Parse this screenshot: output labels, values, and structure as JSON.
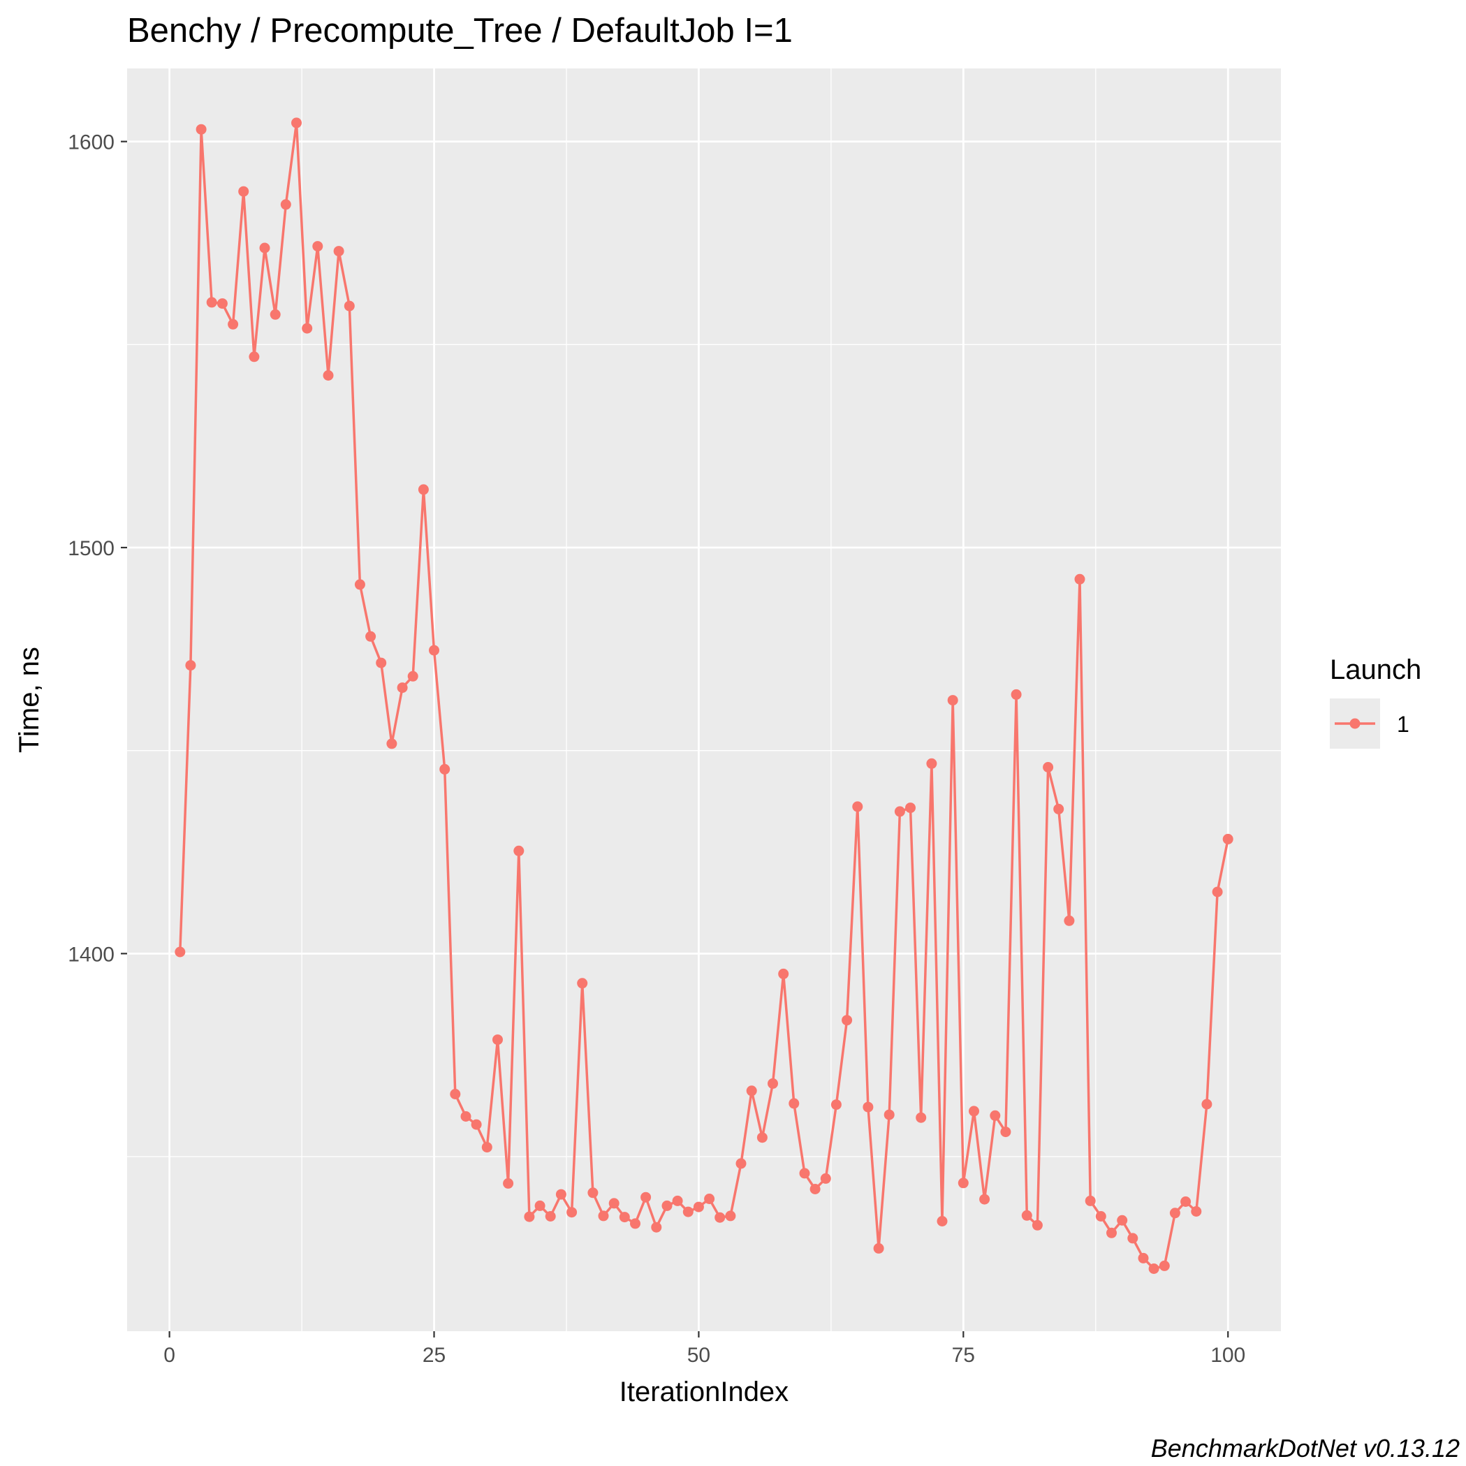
{
  "chart_data": {
    "type": "line",
    "title": "Benchy / Precompute_Tree / DefaultJob I=1",
    "xlabel": "IterationIndex",
    "ylabel": "Time, ns",
    "caption": "BenchmarkDotNet v0.13.12",
    "xlim": [
      -4,
      105
    ],
    "ylim": [
      1307,
      1618
    ],
    "x_ticks": [
      0,
      25,
      50,
      75,
      100
    ],
    "y_ticks": [
      1400,
      1500,
      1600
    ],
    "grid": true,
    "legend": {
      "title": "Launch",
      "position": "right"
    },
    "series": [
      {
        "name": "1",
        "color": "#F8766D",
        "x": [
          1,
          2,
          3,
          4,
          5,
          6,
          7,
          8,
          9,
          10,
          11,
          12,
          13,
          14,
          15,
          16,
          17,
          18,
          19,
          20,
          21,
          22,
          23,
          24,
          25,
          26,
          27,
          28,
          29,
          30,
          31,
          32,
          33,
          34,
          35,
          36,
          37,
          38,
          39,
          40,
          41,
          42,
          43,
          44,
          45,
          46,
          47,
          48,
          49,
          50,
          51,
          52,
          53,
          54,
          55,
          56,
          57,
          58,
          59,
          60,
          61,
          62,
          63,
          64,
          65,
          66,
          67,
          68,
          69,
          70,
          71,
          72,
          73,
          74,
          75,
          76,
          77,
          78,
          79,
          80,
          81,
          82,
          83,
          84,
          85,
          86,
          87,
          88,
          89,
          90,
          91,
          92,
          93,
          94,
          95,
          96,
          97,
          98,
          99,
          100
        ],
        "y": [
          1400.4,
          1471.0,
          1603.0,
          1560.4,
          1560.1,
          1555.0,
          1587.7,
          1547.0,
          1573.8,
          1557.4,
          1584.5,
          1604.6,
          1554.0,
          1574.2,
          1542.4,
          1573.0,
          1559.5,
          1490.9,
          1478.1,
          1471.6,
          1451.7,
          1465.5,
          1468.3,
          1514.3,
          1474.7,
          1445.4,
          1365.4,
          1359.9,
          1357.9,
          1352.3,
          1378.8,
          1343.4,
          1425.3,
          1335.2,
          1337.9,
          1335.3,
          1340.7,
          1336.3,
          1392.7,
          1341.1,
          1335.4,
          1338.5,
          1335.1,
          1333.5,
          1340.0,
          1332.6,
          1337.9,
          1339.1,
          1336.4,
          1337.6,
          1339.6,
          1335.0,
          1335.4,
          1348.3,
          1366.2,
          1354.7,
          1368.0,
          1395.0,
          1363.1,
          1345.9,
          1342.0,
          1344.6,
          1362.8,
          1383.6,
          1436.2,
          1362.2,
          1327.4,
          1360.3,
          1435.0,
          1435.9,
          1359.6,
          1446.8,
          1334.1,
          1462.4,
          1343.5,
          1361.2,
          1339.5,
          1360.1,
          1356.1,
          1463.8,
          1335.5,
          1333.1,
          1445.9,
          1435.6,
          1408.1,
          1492.2,
          1339.1,
          1335.3,
          1331.2,
          1334.3,
          1329.9,
          1325.0,
          1322.4,
          1323.1,
          1336.1,
          1338.9,
          1336.5,
          1362.9,
          1415.2,
          1428.2
        ]
      }
    ]
  }
}
